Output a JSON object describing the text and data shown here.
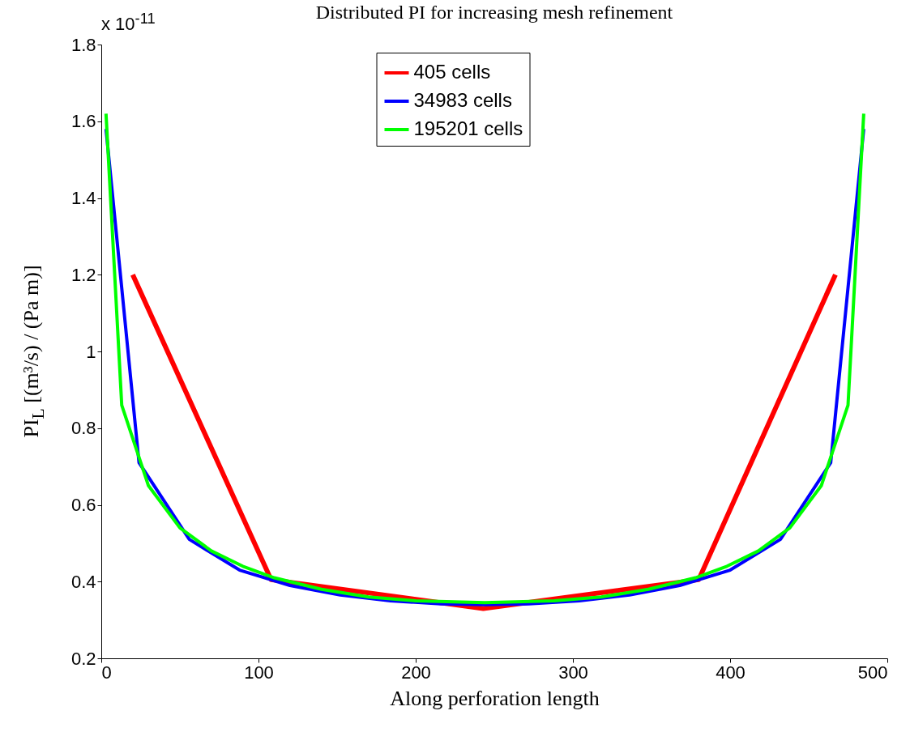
{
  "chart_data": {
    "type": "line",
    "title": "Distributed PI for increasing mesh refinement",
    "xlabel": "Along perforation length",
    "ylabel": "PI$_{L}$ [(m³/s) / (Pa m)]",
    "annotations": [
      "x 10$^{-11}$"
    ],
    "xlim": [
      0,
      500
    ],
    "xticks": [
      0,
      100,
      200,
      300,
      400,
      500
    ],
    "ylim": [
      0.2,
      1.8
    ],
    "yticks": [
      0.2,
      0.4,
      0.6,
      0.8,
      1,
      1.2,
      1.4,
      1.6,
      1.8
    ],
    "legend": "top",
    "line_style": "solid",
    "series": [
      {
        "name": "405 cells",
        "color": "#ff0000",
        "x": [
          20,
          108,
          243,
          380,
          467
        ],
        "values": [
          1.2,
          0.405,
          0.33,
          0.405,
          1.2
        ]
      },
      {
        "name": "34983 cells",
        "color": "#0000ff",
        "x": [
          3,
          24,
          56,
          88,
          120,
          152,
          184,
          216,
          244,
          272,
          304,
          336,
          368,
          400,
          432,
          464,
          485
        ],
        "values": [
          1.58,
          0.71,
          0.51,
          0.43,
          0.39,
          0.365,
          0.35,
          0.342,
          0.34,
          0.342,
          0.35,
          0.365,
          0.39,
          0.43,
          0.51,
          0.71,
          1.58
        ]
      },
      {
        "name": "195201 cells",
        "color": "#00ff00",
        "x": [
          3,
          13,
          30,
          50,
          70,
          90,
          110,
          140,
          170,
          200,
          244,
          288,
          318,
          348,
          378,
          398,
          418,
          438,
          458,
          475,
          485
        ],
        "values": [
          1.62,
          0.86,
          0.65,
          0.54,
          0.48,
          0.44,
          0.41,
          0.38,
          0.36,
          0.35,
          0.345,
          0.35,
          0.36,
          0.38,
          0.41,
          0.44,
          0.48,
          0.54,
          0.65,
          0.86,
          1.62
        ]
      }
    ]
  }
}
